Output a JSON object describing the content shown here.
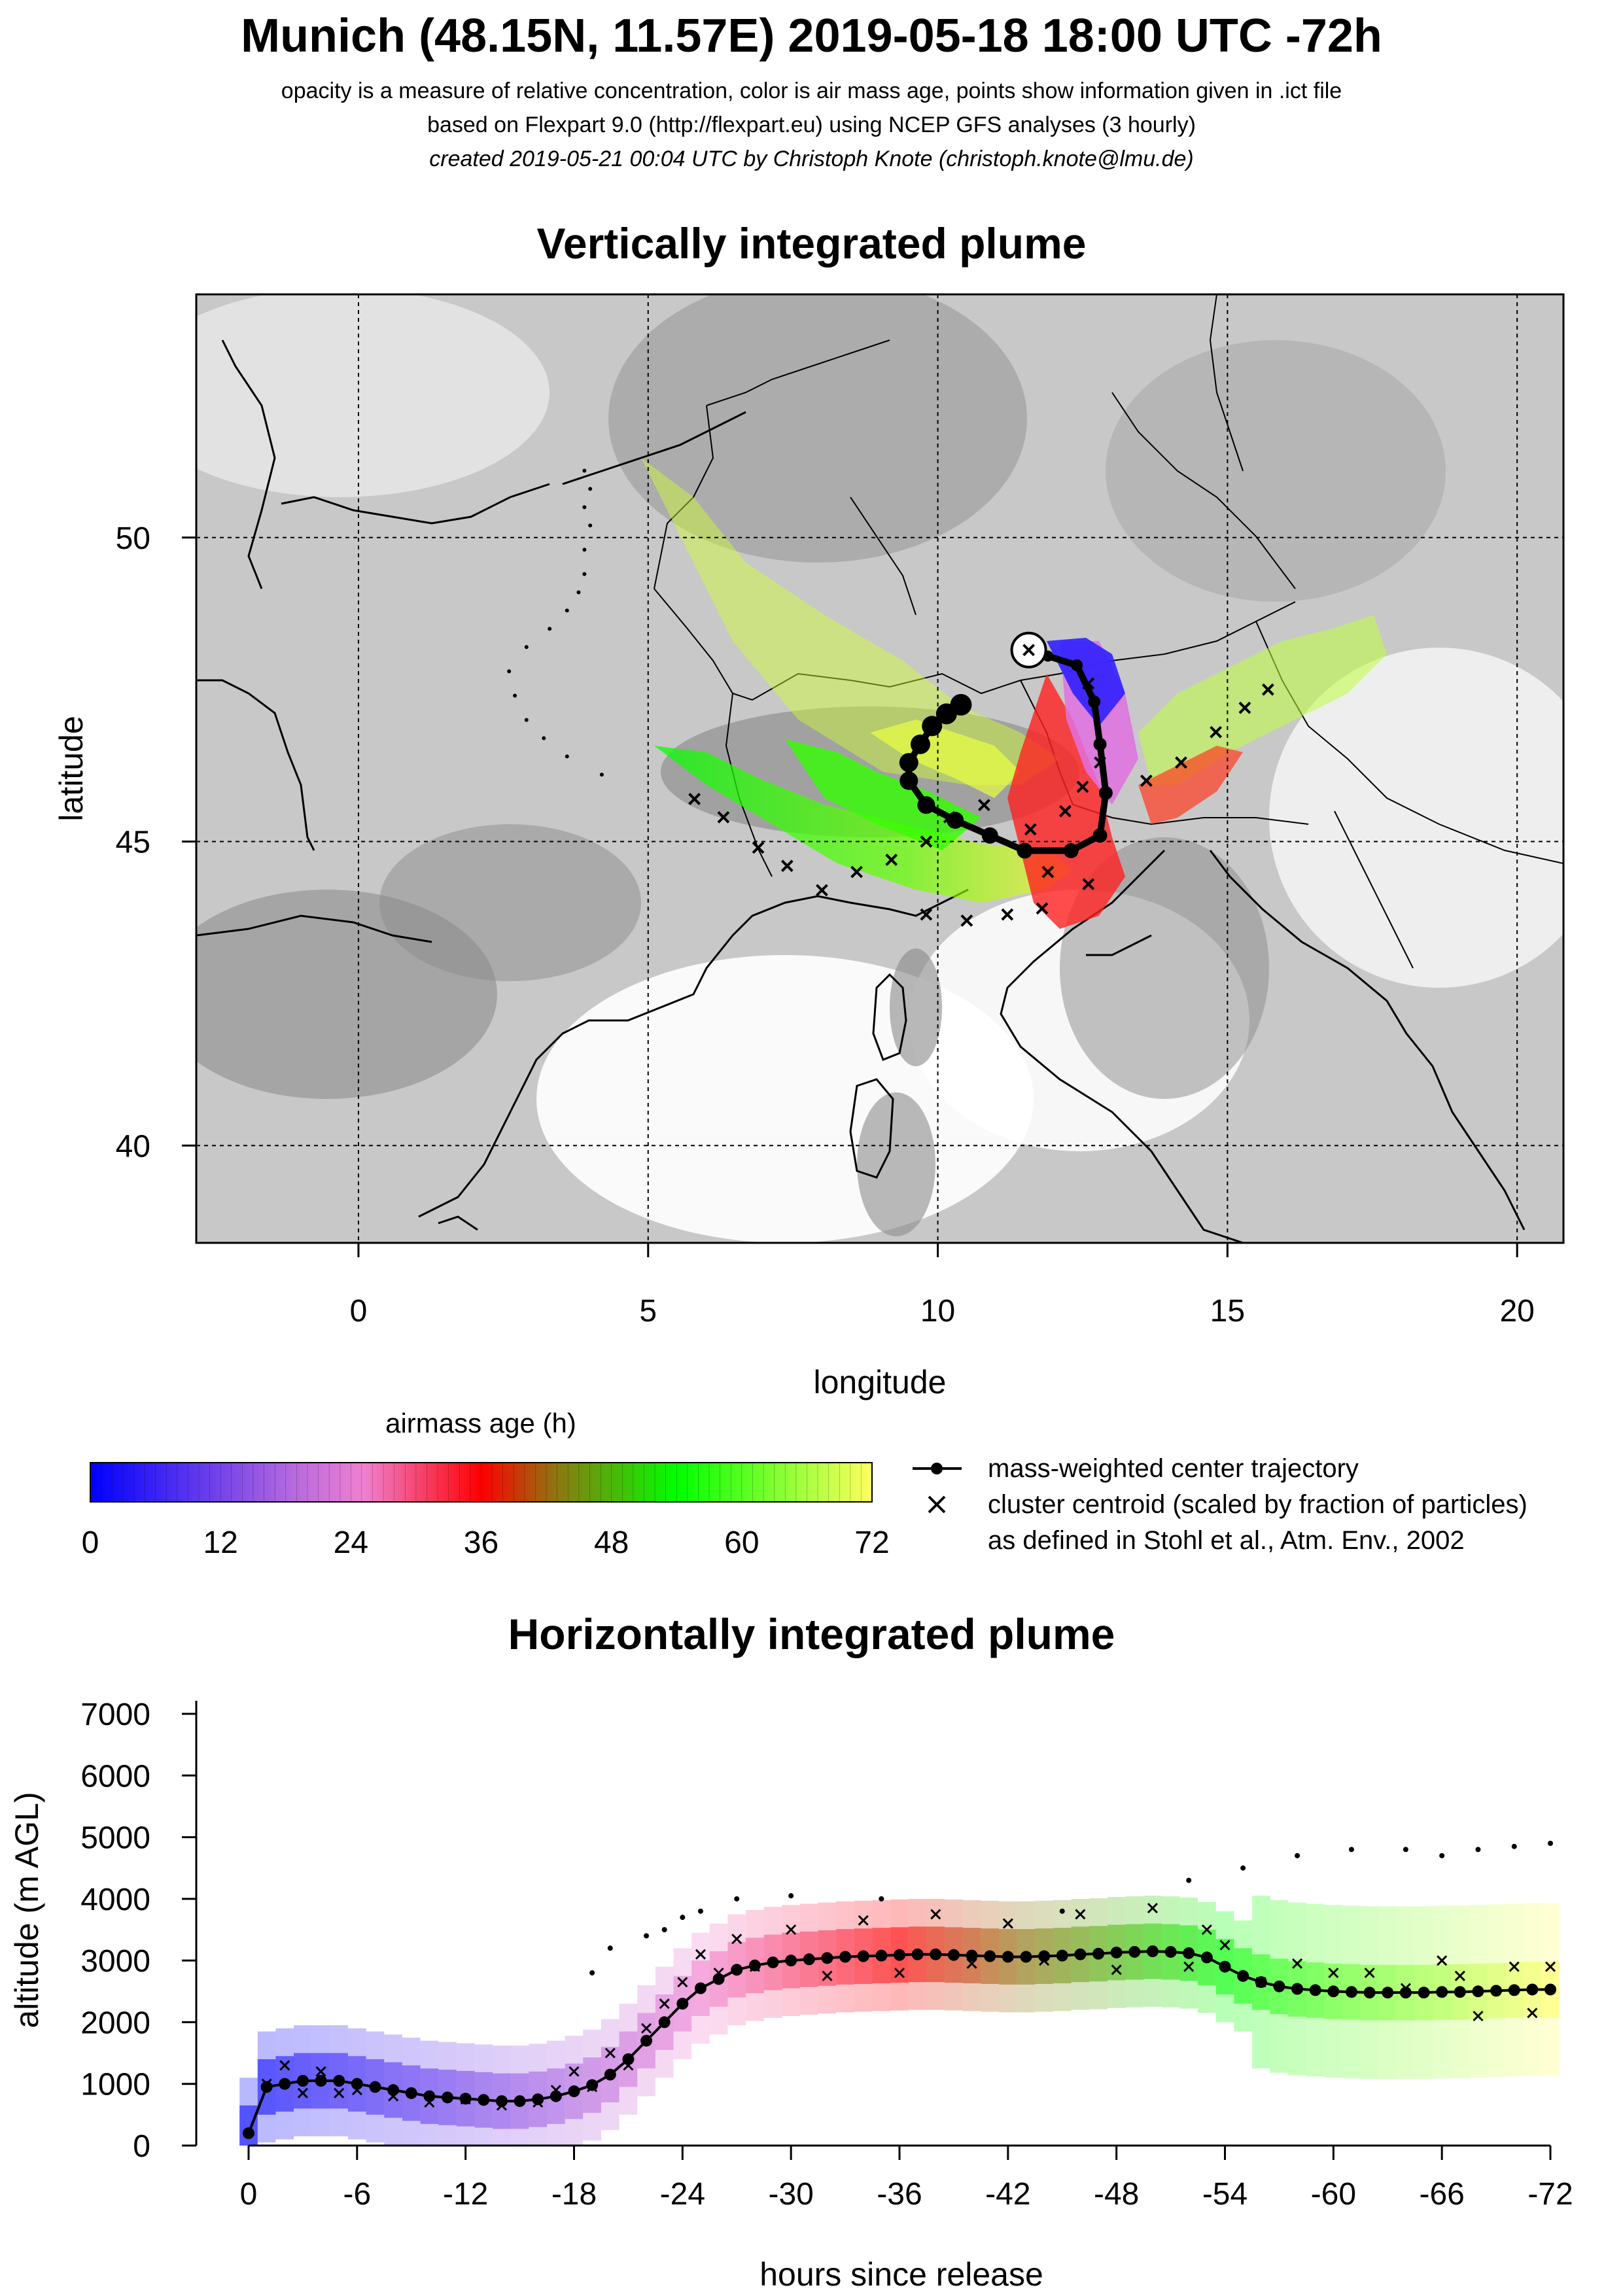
{
  "header": {
    "title": "Munich (48.15N, 11.57E) 2019-05-18 18:00 UTC -72h",
    "subtitle_1": "opacity is a measure of relative concentration, color is air mass age, points show information given in .ict file",
    "subtitle_2": "based on Flexpart 9.0 (http://flexpart.eu) using NCEP GFS analyses (3 hourly)",
    "subtitle_3": "created 2019-05-21 00:04 UTC by Christoph Knote (christoph.knote@lmu.de)"
  },
  "chart_data": [
    {
      "type": "map",
      "title": "Vertically integrated plume",
      "xlabel": "longitude",
      "ylabel": "latitude",
      "xlim": [
        -2.8,
        20.8
      ],
      "ylim": [
        38.4,
        54.0
      ],
      "xticks": [
        "0",
        "5",
        "10",
        "15",
        "20"
      ],
      "xtick_values": [
        0,
        5,
        10,
        15,
        20
      ],
      "yticks": [
        "40",
        "45",
        "50"
      ],
      "ytick_values": [
        40,
        45,
        50
      ],
      "grid": true,
      "release_point": {
        "lon": 11.57,
        "lat": 48.15
      },
      "center_trajectory": [
        [
          11.57,
          48.15
        ],
        [
          11.9,
          48.05
        ],
        [
          12.4,
          47.9
        ],
        [
          12.7,
          47.3
        ],
        [
          12.8,
          46.6
        ],
        [
          12.9,
          45.8
        ],
        [
          12.8,
          45.1
        ],
        [
          12.3,
          44.85
        ],
        [
          11.5,
          44.85
        ],
        [
          10.9,
          45.1
        ],
        [
          10.3,
          45.35
        ],
        [
          9.8,
          45.6
        ],
        [
          9.5,
          46.0
        ],
        [
          9.5,
          46.3
        ],
        [
          9.7,
          46.6
        ],
        [
          9.9,
          46.9
        ],
        [
          10.15,
          47.1
        ],
        [
          10.4,
          47.25
        ]
      ],
      "cluster_centroids": [
        [
          12.6,
          47.6
        ],
        [
          12.8,
          46.3
        ],
        [
          12.5,
          45.9
        ],
        [
          12.2,
          45.5
        ],
        [
          11.6,
          45.2
        ],
        [
          10.8,
          45.6
        ],
        [
          10.2,
          45.4
        ],
        [
          9.8,
          45.0
        ],
        [
          9.2,
          44.7
        ],
        [
          8.6,
          44.5
        ],
        [
          8.0,
          44.2
        ],
        [
          7.4,
          44.6
        ],
        [
          6.9,
          44.9
        ],
        [
          6.3,
          45.4
        ],
        [
          5.8,
          45.7
        ],
        [
          11.8,
          43.9
        ],
        [
          11.2,
          43.8
        ],
        [
          10.5,
          43.7
        ],
        [
          9.8,
          43.8
        ],
        [
          13.6,
          46.0
        ],
        [
          14.2,
          46.3
        ],
        [
          14.8,
          46.8
        ],
        [
          15.3,
          47.2
        ],
        [
          15.7,
          47.5
        ],
        [
          11.9,
          44.5
        ],
        [
          12.6,
          44.3
        ]
      ],
      "fringe_points": [
        [
          3.9,
          51.1
        ],
        [
          4.0,
          50.8
        ],
        [
          3.9,
          50.5
        ],
        [
          4.0,
          50.2
        ],
        [
          3.9,
          49.8
        ],
        [
          3.9,
          49.4
        ],
        [
          3.8,
          49.1
        ],
        [
          3.6,
          48.8
        ],
        [
          3.3,
          48.5
        ],
        [
          2.9,
          48.2
        ],
        [
          2.6,
          47.8
        ],
        [
          2.7,
          47.4
        ],
        [
          2.9,
          47.0
        ],
        [
          3.2,
          46.7
        ],
        [
          3.6,
          46.4
        ],
        [
          4.2,
          46.1
        ]
      ],
      "airmass_age_colorbar": {
        "label": "airmass age (h)",
        "ticks": [
          "0",
          "12",
          "24",
          "36",
          "48",
          "60",
          "72"
        ],
        "tick_values": [
          0,
          12,
          24,
          36,
          48,
          60,
          72
        ],
        "range": [
          0,
          72
        ]
      },
      "legend": [
        {
          "symbol": "line-dot",
          "label": "mass-weighted center trajectory"
        },
        {
          "symbol": "cross",
          "label": "cluster centroid (scaled by fraction of particles)"
        },
        {
          "symbol": "none",
          "label": "as defined in Stohl et al., Atm. Env., 2002"
        }
      ]
    },
    {
      "type": "line",
      "title": "Horizontally integrated plume",
      "xlabel": "hours since release",
      "ylabel": "altitude (m AGL)",
      "xlim": [
        0,
        -72
      ],
      "ylim": [
        0,
        7000
      ],
      "xticks": [
        "0",
        "-6",
        "-12",
        "-18",
        "-24",
        "-30",
        "-36",
        "-42",
        "-48",
        "-54",
        "-60",
        "-66",
        "-72"
      ],
      "xtick_values": [
        0,
        -6,
        -12,
        -18,
        -24,
        -30,
        -36,
        -42,
        -48,
        -54,
        -60,
        -66,
        -72
      ],
      "yticks": [
        "0",
        "1000",
        "2000",
        "3000",
        "4000",
        "5000",
        "6000",
        "7000"
      ],
      "ytick_values": [
        0,
        1000,
        2000,
        3000,
        4000,
        5000,
        6000,
        7000
      ],
      "center_trajectory": {
        "x": [
          0,
          -1,
          -2,
          -3,
          -4,
          -5,
          -6,
          -7,
          -8,
          -9,
          -10,
          -11,
          -12,
          -13,
          -14,
          -15,
          -16,
          -17,
          -18,
          -19,
          -20,
          -21,
          -22,
          -23,
          -24,
          -25,
          -26,
          -27,
          -28,
          -29,
          -30,
          -31,
          -32,
          -33,
          -34,
          -35,
          -36,
          -37,
          -38,
          -39,
          -40,
          -41,
          -42,
          -43,
          -44,
          -45,
          -46,
          -47,
          -48,
          -49,
          -50,
          -51,
          -52,
          -53,
          -54,
          -55,
          -56,
          -57,
          -58,
          -59,
          -60,
          -61,
          -62,
          -63,
          -64,
          -65,
          -66,
          -67,
          -68,
          -69,
          -70,
          -71,
          -72
        ],
        "y": [
          200,
          950,
          1000,
          1050,
          1050,
          1050,
          1000,
          950,
          900,
          850,
          800,
          780,
          760,
          740,
          720,
          720,
          750,
          800,
          880,
          980,
          1150,
          1400,
          1700,
          2000,
          2300,
          2550,
          2700,
          2850,
          2920,
          2970,
          3000,
          3020,
          3040,
          3060,
          3070,
          3080,
          3090,
          3100,
          3100,
          3090,
          3080,
          3070,
          3060,
          3060,
          3070,
          3080,
          3100,
          3110,
          3130,
          3140,
          3150,
          3140,
          3120,
          3050,
          2900,
          2750,
          2650,
          2580,
          2540,
          2520,
          2500,
          2490,
          2480,
          2480,
          2480,
          2480,
          2490,
          2490,
          2500,
          2510,
          2520,
          2530,
          2530
        ]
      },
      "cluster_centroids": {
        "x": [
          -1,
          -2,
          -3,
          -4,
          -5,
          -6,
          -8,
          -10,
          -12,
          -14,
          -16,
          -17,
          -18,
          -19,
          -20,
          -21,
          -22,
          -23,
          -24,
          -25,
          -26,
          -27,
          -28,
          -30,
          -32,
          -34,
          -36,
          -38,
          -40,
          -42,
          -44,
          -46,
          -48,
          -50,
          -52,
          -53,
          -54,
          -56,
          -58,
          -60,
          -62,
          -64,
          -66,
          -67,
          -68,
          -70,
          -71,
          -72
        ],
        "y": [
          1000,
          1300,
          850,
          1200,
          850,
          900,
          800,
          700,
          750,
          650,
          700,
          900,
          1200,
          950,
          1500,
          1300,
          1900,
          2300,
          2650,
          3100,
          2800,
          3350,
          2900,
          3500,
          2750,
          3650,
          2800,
          3750,
          2950,
          3600,
          3000,
          3750,
          2850,
          3850,
          2900,
          3500,
          3250,
          2650,
          2950,
          2800,
          2800,
          2550,
          3000,
          2750,
          2100,
          2900,
          2150,
          2900
        ]
      },
      "fringe_points": {
        "x": [
          -19,
          -20,
          -22,
          -23,
          -24,
          -25,
          -27,
          -30,
          -35,
          -45,
          -52,
          -55,
          -58,
          -61,
          -64,
          -66,
          -68,
          -70,
          -72
        ],
        "y": [
          2800,
          3200,
          3400,
          3500,
          3700,
          3800,
          4000,
          4050,
          4000,
          3800,
          4300,
          4500,
          4700,
          4800,
          4800,
          4700,
          4800,
          4850,
          4900
        ]
      }
    }
  ]
}
